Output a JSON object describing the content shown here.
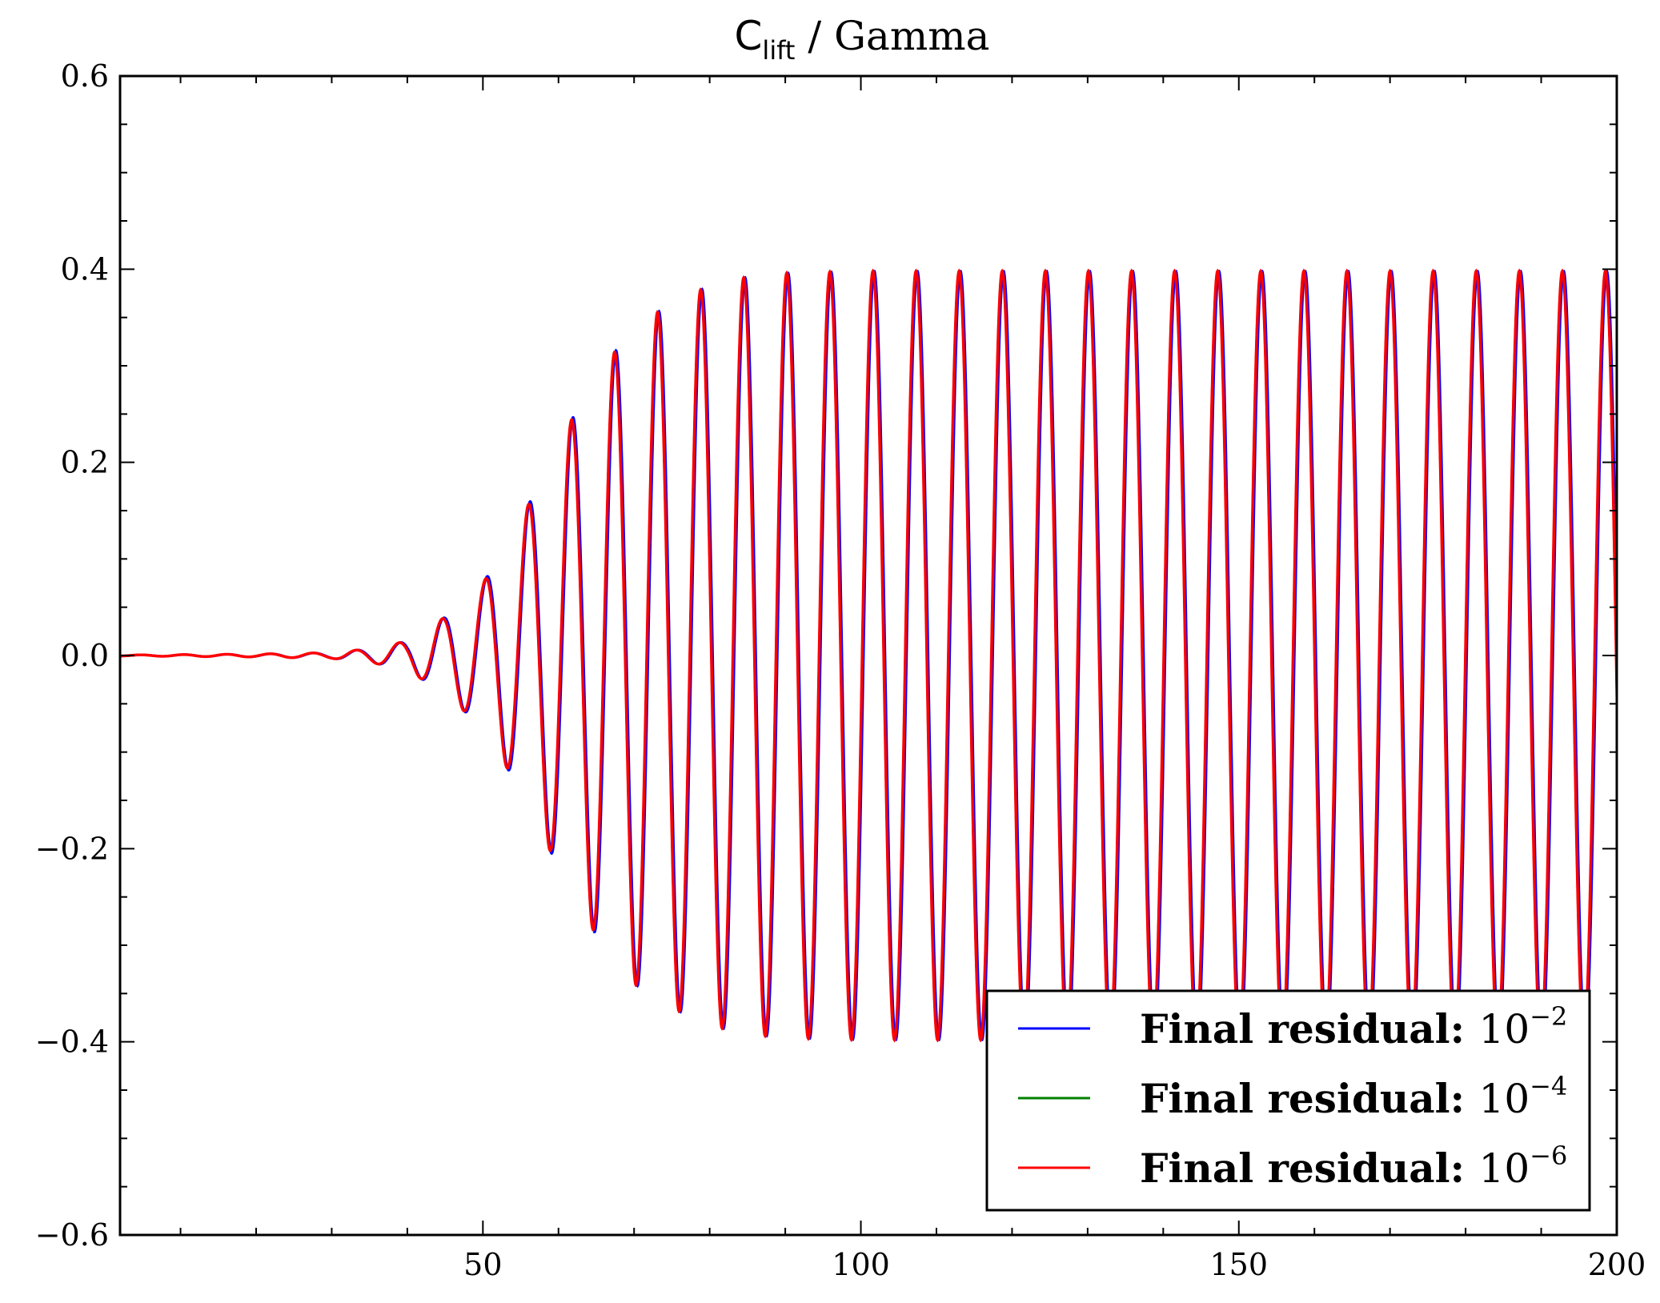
{
  "chart_data": {
    "type": "line",
    "title": {
      "symbol": "C",
      "subscript": "lift",
      "rest": " / Gamma"
    },
    "xlabel": "",
    "ylabel": "",
    "xlim": [
      2,
      200
    ],
    "ylim": [
      -0.6,
      0.6
    ],
    "x_ticks": [
      50,
      100,
      150,
      200
    ],
    "x_tick_labels": [
      "50",
      "100",
      "150",
      "200"
    ],
    "y_ticks": [
      -0.6,
      -0.4,
      -0.2,
      0.0,
      0.2,
      0.4,
      0.6
    ],
    "y_tick_labels": [
      "−0.6",
      "−0.4",
      "−0.2",
      "0.0",
      "0.2",
      "0.4",
      "0.6"
    ],
    "grid": false,
    "legend_position": "bottom-right",
    "signal": {
      "period": 5.7,
      "amplitude_envelope": [
        [
          2,
          0.0005
        ],
        [
          20,
          0.0015
        ],
        [
          30,
          0.003
        ],
        [
          35,
          0.007
        ],
        [
          40,
          0.015
        ],
        [
          45,
          0.04
        ],
        [
          50,
          0.075
        ],
        [
          55,
          0.14
        ],
        [
          60,
          0.22
        ],
        [
          65,
          0.29
        ],
        [
          70,
          0.34
        ],
        [
          75,
          0.365
        ],
        [
          80,
          0.383
        ],
        [
          85,
          0.392
        ],
        [
          90,
          0.396
        ],
        [
          100,
          0.398
        ],
        [
          200,
          0.398
        ]
      ],
      "peak_minima": [
        [
          47.2,
          -0.045
        ],
        [
          53.8,
          -0.115
        ],
        [
          59.6,
          -0.2
        ],
        [
          65.2,
          -0.28
        ],
        [
          70.8,
          -0.335
        ],
        [
          76.4,
          -0.365
        ],
        [
          82.0,
          -0.383
        ],
        [
          87.6,
          -0.391
        ],
        [
          93.2,
          -0.394
        ],
        [
          98.8,
          -0.396
        ]
      ],
      "peak_maxima": [
        [
          44.4,
          0.028
        ],
        [
          50.6,
          0.075
        ],
        [
          56.8,
          0.158
        ],
        [
          62.4,
          0.245
        ],
        [
          68.0,
          0.312
        ],
        [
          73.6,
          0.355
        ],
        [
          79.2,
          0.378
        ],
        [
          84.8,
          0.39
        ],
        [
          90.4,
          0.395
        ],
        [
          96.0,
          0.397
        ],
        [
          101.6,
          0.398
        ]
      ]
    },
    "series": [
      {
        "name_text": "Final residual: ",
        "name_base": "10",
        "name_exp": "−2",
        "color": "#0000ff",
        "phase_lag": 0.18
      },
      {
        "name_text": "Final residual: ",
        "name_base": "10",
        "name_exp": "−4",
        "color": "#008000",
        "phase_lag": 0.0
      },
      {
        "name_text": "Final residual: ",
        "name_base": "10",
        "name_exp": "−6",
        "color": "#ff0000",
        "phase_lag": 0.0
      }
    ]
  }
}
